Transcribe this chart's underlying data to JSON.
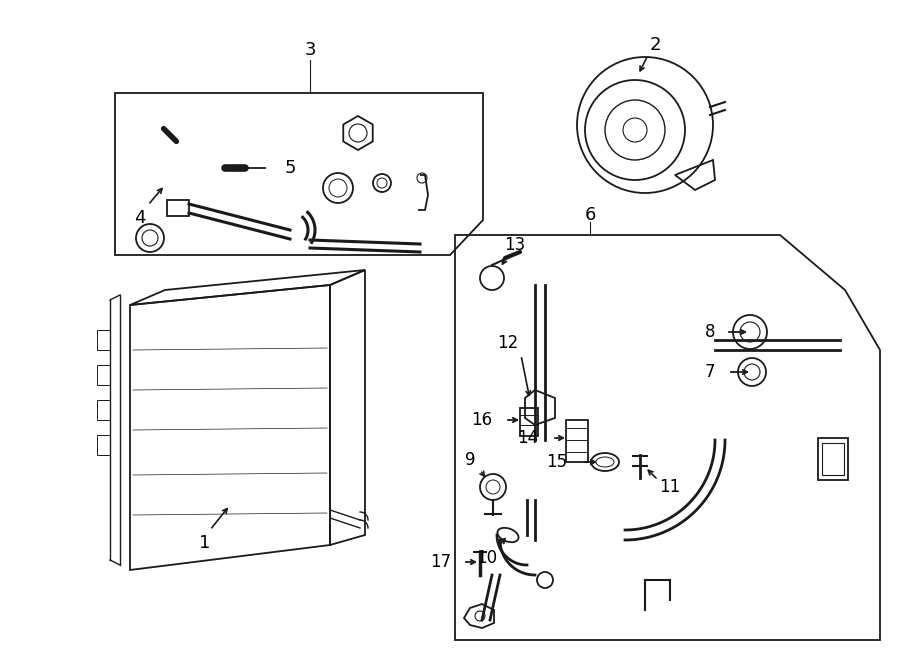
{
  "bg_color": "#ffffff",
  "line_color": "#1a1a1a",
  "fig_width": 9.0,
  "fig_height": 6.61,
  "dpi": 100,
  "lw": 1.3
}
